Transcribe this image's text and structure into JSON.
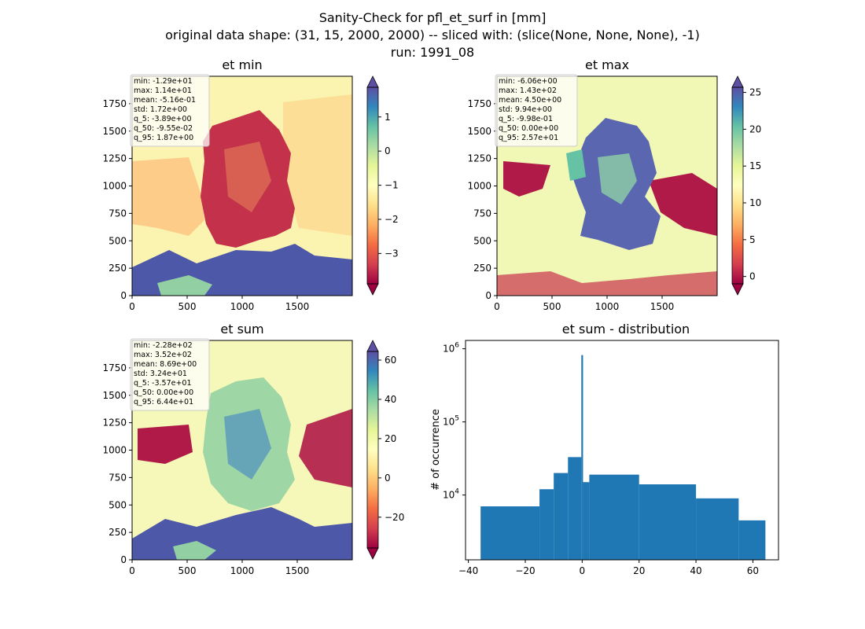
{
  "figure": {
    "title_lines": [
      "Sanity-Check for pfl_et_surf in [mm]",
      "original data shape: (31, 15, 2000, 2000) -- sliced with: (slice(None, None, None), -1)",
      "run: 1991_08"
    ]
  },
  "panels": [
    {
      "title": "et min",
      "stats": [
        "min: -1.29e+01",
        "max: 1.14e+01",
        "mean: -5.16e-01",
        "std: 1.72e+00",
        "q_5: -3.89e+00",
        "q_50: -9.55e-02",
        "q_95: 1.87e+00"
      ],
      "colorbar_ticks": [
        "1",
        "0",
        "−1",
        "−2",
        "−3"
      ],
      "colorbar_values": [
        1,
        0,
        -1,
        -2,
        -3
      ],
      "colorbar_range": [
        -3.89,
        1.87
      ]
    },
    {
      "title": "et max",
      "stats": [
        "min: -6.06e+00",
        "max: 1.43e+02",
        "mean: 4.50e+00",
        "std: 9.94e+00",
        "q_5: -9.98e-01",
        "q_50: 0.00e+00",
        "q_95: 2.57e+01"
      ],
      "colorbar_ticks": [
        "25",
        "20",
        "15",
        "10",
        "5",
        "0"
      ],
      "colorbar_values": [
        25,
        20,
        15,
        10,
        5,
        0
      ],
      "colorbar_range": [
        -0.998,
        25.7
      ]
    },
    {
      "title": "et sum",
      "stats": [
        "min: -2.28e+02",
        "max: 3.52e+02",
        "mean: 8.69e+00",
        "std: 3.24e+01",
        "q_5: -3.57e+01",
        "q_50: 0.00e+00",
        "q_95: 6.44e+01"
      ],
      "colorbar_ticks": [
        "60",
        "40",
        "20",
        "0",
        "−20"
      ],
      "colorbar_values": [
        60,
        40,
        20,
        0,
        -20
      ],
      "colorbar_range": [
        -35.7,
        64.4
      ]
    }
  ],
  "map_axes": {
    "x_ticks": [
      "0",
      "500",
      "1000",
      "1500"
    ],
    "y_ticks": [
      "1750",
      "1500",
      "1250",
      "1000",
      "750",
      "500",
      "250",
      "0"
    ]
  },
  "chart_data": {
    "type": "bar",
    "title": "et sum - distribution",
    "xlabel": "",
    "ylabel": "# of occurrence",
    "y_scale": "log",
    "xlim": [
      -41,
      69
    ],
    "ylim": [
      1300,
      1300000
    ],
    "x_ticks": [
      -40,
      -20,
      0,
      20,
      40,
      60
    ],
    "x_tick_labels": [
      "−40",
      "−20",
      "0",
      "20",
      "40",
      "60"
    ],
    "y_tick_labels": [
      "10^6",
      "10^5",
      "10^4"
    ],
    "y_tick_values": [
      1000000,
      100000,
      10000
    ],
    "bar_color": "#1f77b4",
    "bins": [
      {
        "x0": -35.7,
        "x1": -15,
        "y": 7000
      },
      {
        "x0": -15,
        "x1": -10,
        "y": 12000
      },
      {
        "x0": -10,
        "x1": -5,
        "y": 20000
      },
      {
        "x0": -5,
        "x1": -0.3,
        "y": 33000
      },
      {
        "x0": -0.3,
        "x1": 0.3,
        "y": 820000
      },
      {
        "x0": 0.3,
        "x1": 2.5,
        "y": 15000
      },
      {
        "x0": 2.5,
        "x1": 20,
        "y": 19000
      },
      {
        "x0": 20,
        "x1": 40,
        "y": 14000
      },
      {
        "x0": 40,
        "x1": 55,
        "y": 9000
      },
      {
        "x0": 55,
        "x1": 64.4,
        "y": 4500
      }
    ]
  }
}
